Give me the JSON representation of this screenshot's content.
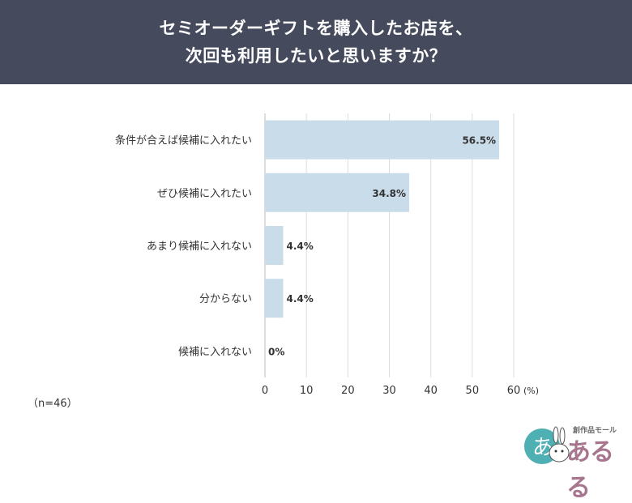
{
  "header": {
    "title_line1": "セミオーダーギフトを購入したお店を、",
    "title_line2": "次回も利用したいと思いますか？"
  },
  "sample_note": "（n=46）",
  "logo": {
    "small_text": "創作品モール",
    "brand_text": "あるる",
    "badge_text": "あ"
  },
  "chart_data": {
    "type": "bar",
    "orientation": "horizontal",
    "categories": [
      "条件が合えば候補に入れたい",
      "ぜひ候補に入れたい",
      "あまり候補に入れない",
      "分からない",
      "候補に入れない"
    ],
    "values": [
      56.5,
      34.8,
      4.4,
      4.4,
      0
    ],
    "value_labels": [
      "56.5%",
      "34.8%",
      "4.4%",
      "4.4%",
      "0%"
    ],
    "xlim": [
      0,
      60
    ],
    "xticks": [
      0,
      10,
      20,
      30,
      40,
      50,
      60
    ],
    "xunit": "(%)",
    "grid": true,
    "bar_color": "#c9dcea",
    "grid_color": "#dcdcdc"
  }
}
